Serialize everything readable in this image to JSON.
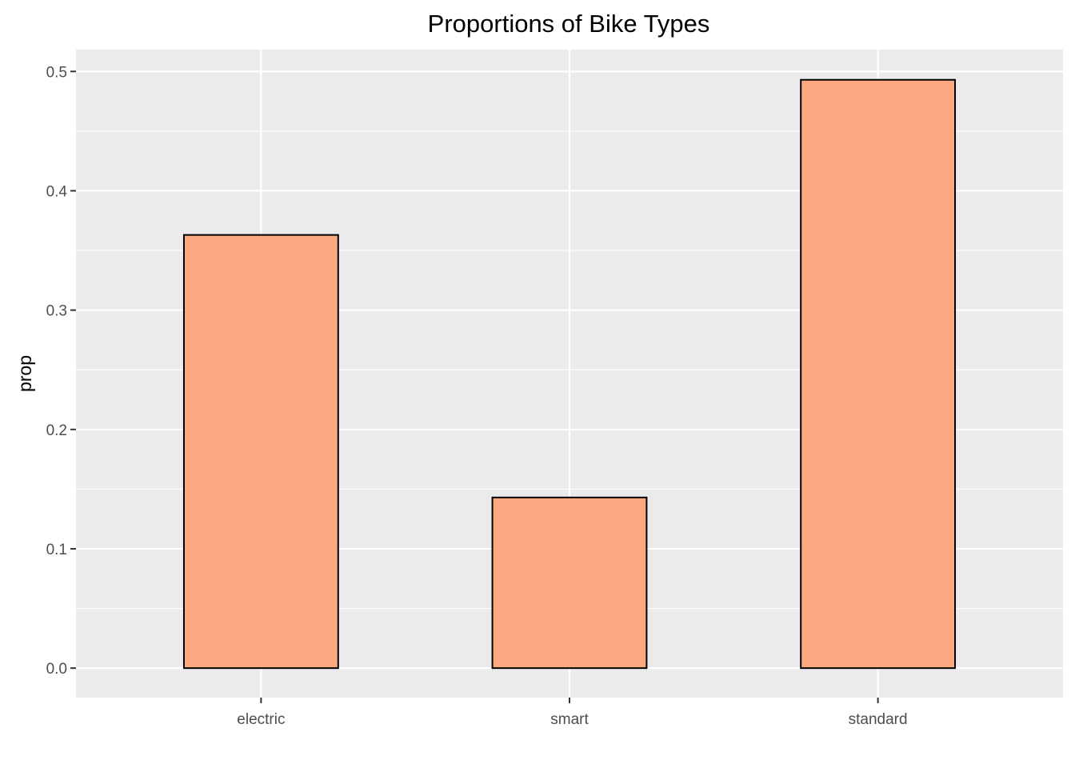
{
  "chart_data": {
    "type": "bar",
    "title": "Proportions of Bike Types",
    "xlabel": "",
    "ylabel": "prop",
    "categories": [
      "electric",
      "smart",
      "standard"
    ],
    "values": [
      0.363,
      0.143,
      0.493
    ],
    "ylim": [
      -0.0247,
      0.5183
    ],
    "yticks": [
      0.0,
      0.1,
      0.2,
      0.3,
      0.4,
      0.5
    ],
    "ytick_labels": [
      "0.0",
      "0.1",
      "0.2",
      "0.3",
      "0.4",
      "0.5"
    ],
    "grid": true,
    "legend": "none",
    "colors": {
      "bar_fill": "#FCA982",
      "bar_outline": "#000000",
      "panel_background": "#EBEBEB",
      "grid": "#FFFFFF",
      "tick": "#333333",
      "tick_label": "#4D4D4D"
    }
  }
}
